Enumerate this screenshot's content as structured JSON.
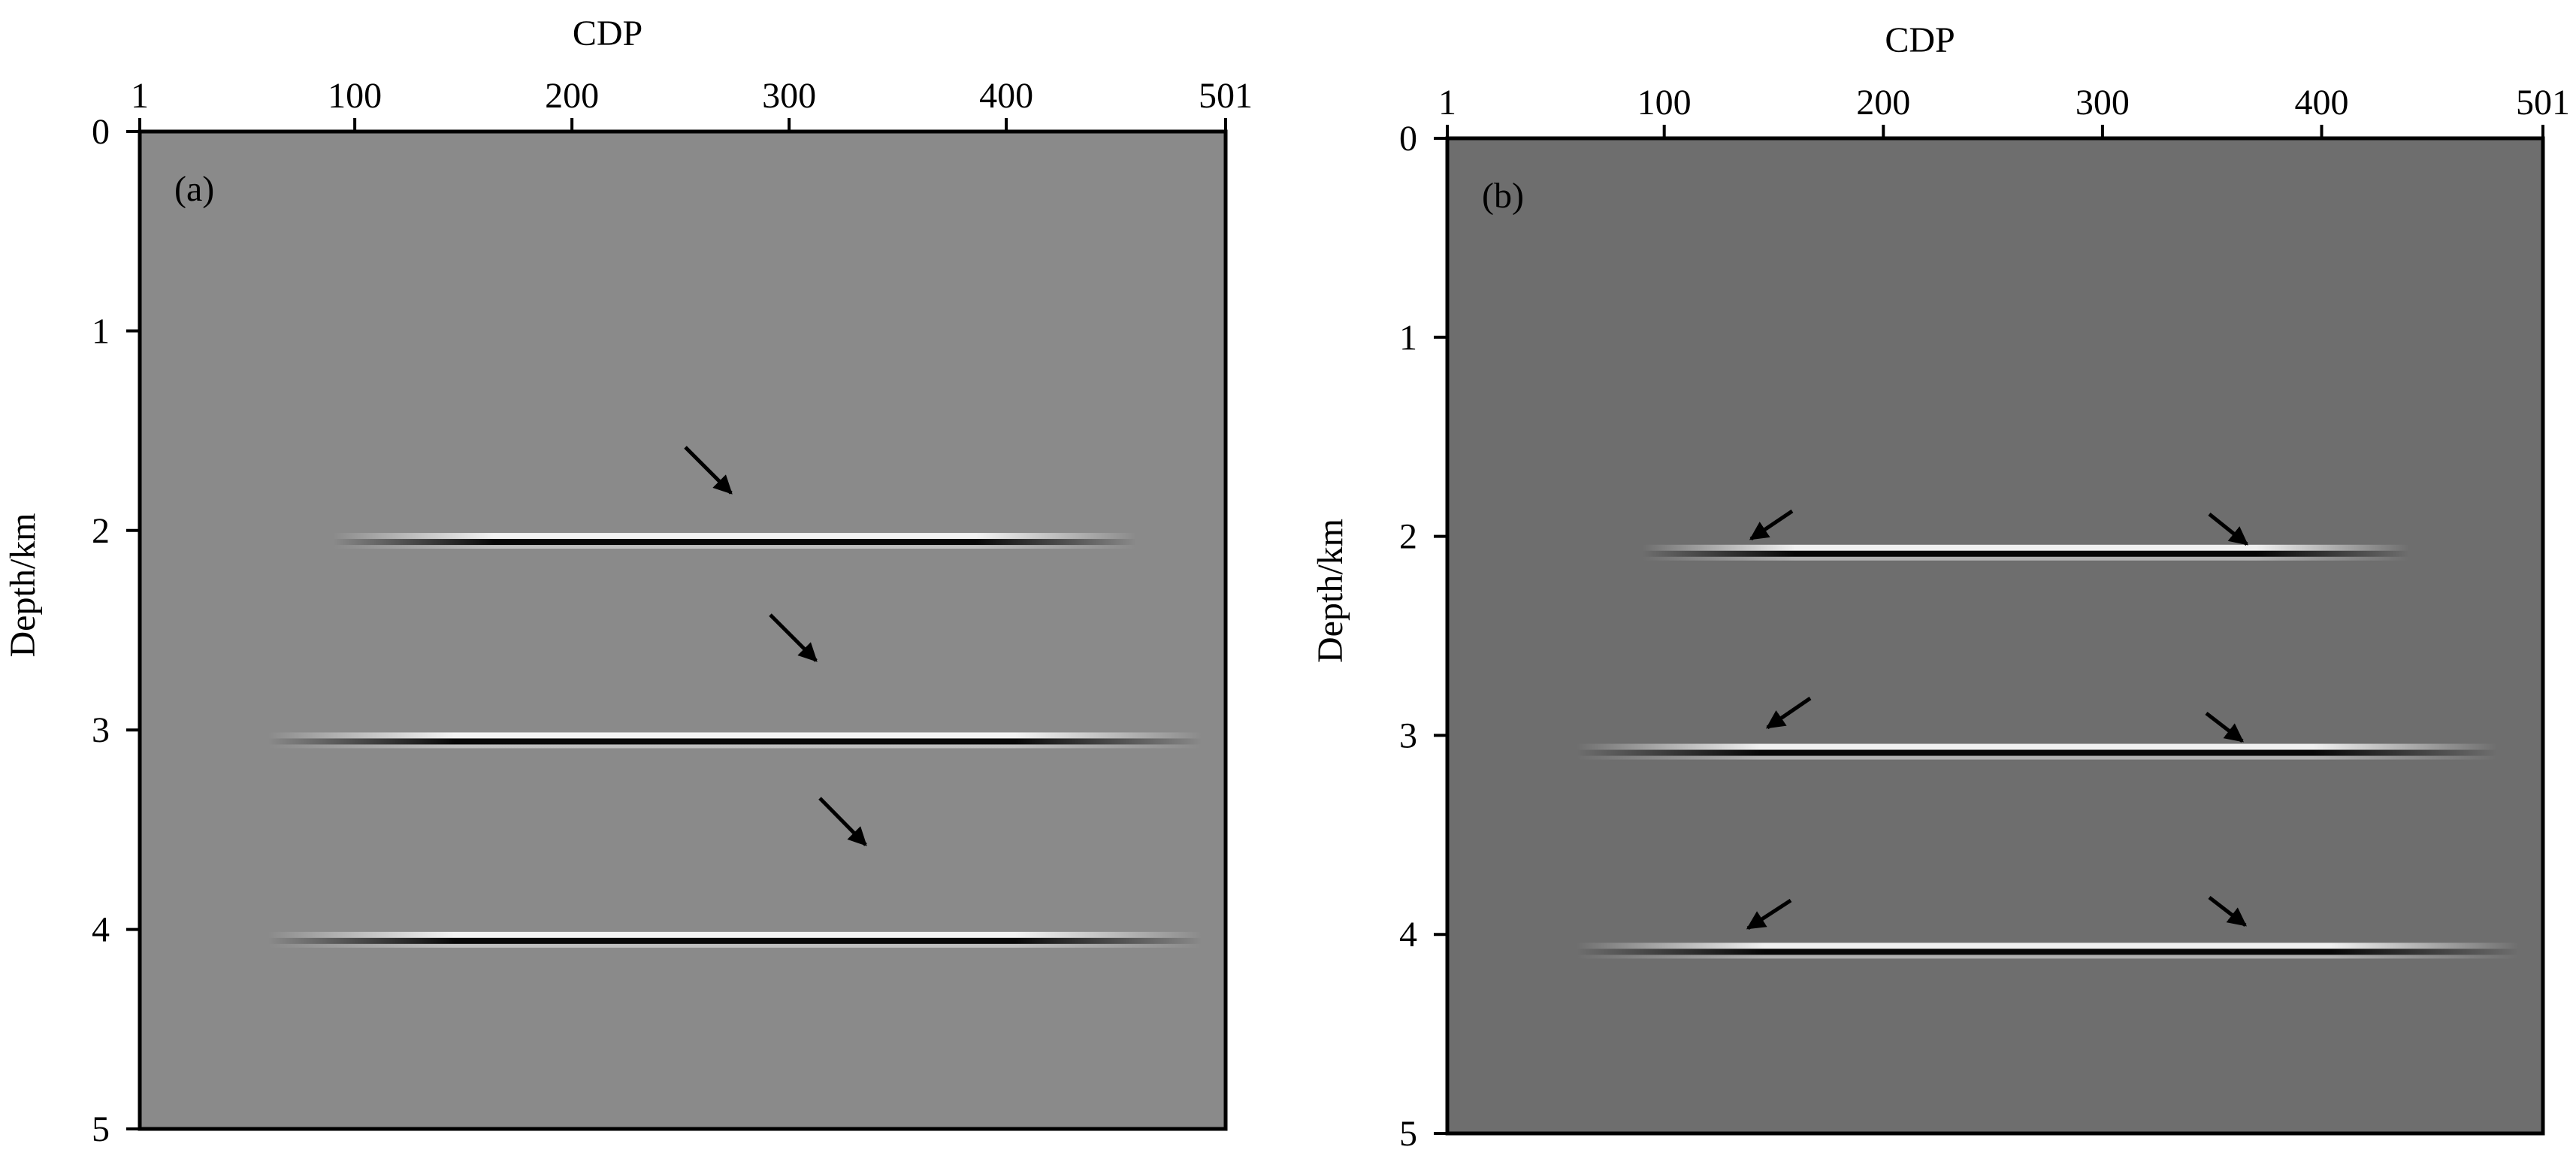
{
  "chart_data": [
    {
      "type": "image",
      "label": "(a)",
      "xlabel": "CDP",
      "ylabel": "Depth/km",
      "background": "#8a8a8a",
      "xlim": [
        1,
        501
      ],
      "xticks": [
        1,
        100,
        200,
        300,
        400,
        501
      ],
      "ylim": [
        0,
        5
      ],
      "yticks": [
        0,
        1,
        2,
        3,
        4,
        5
      ],
      "events": [
        {
          "x": [
            90,
            460
          ],
          "y": 2.05
        },
        {
          "x": [
            60,
            490
          ],
          "y": 3.05
        },
        {
          "x": [
            60,
            490
          ],
          "y": 4.05
        }
      ]
    },
    {
      "type": "image",
      "label": "(b)",
      "xlabel": "CDP",
      "ylabel": "Depth/km",
      "background": "#6e6e6e",
      "xlim": [
        1,
        501
      ],
      "xticks": [
        1,
        100,
        200,
        300,
        400,
        501
      ],
      "ylim": [
        0,
        5
      ],
      "yticks": [
        0,
        1,
        2,
        3,
        4,
        5
      ],
      "events": [
        {
          "x": [
            90,
            440
          ],
          "y": 2.08
        },
        {
          "x": [
            60,
            480
          ],
          "y": 3.08
        },
        {
          "x": [
            60,
            490
          ],
          "y": 4.08
        }
      ]
    }
  ]
}
